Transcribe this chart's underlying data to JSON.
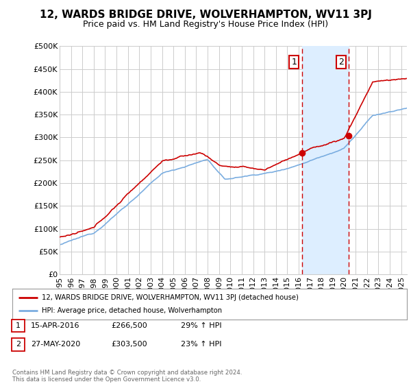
{
  "title": "12, WARDS BRIDGE DRIVE, WOLVERHAMPTON, WV11 3PJ",
  "subtitle": "Price paid vs. HM Land Registry's House Price Index (HPI)",
  "yticks": [
    0,
    50000,
    100000,
    150000,
    200000,
    250000,
    300000,
    350000,
    400000,
    450000,
    500000
  ],
  "ytick_labels": [
    "£0",
    "£50K",
    "£100K",
    "£150K",
    "£200K",
    "£250K",
    "£300K",
    "£350K",
    "£400K",
    "£450K",
    "£500K"
  ],
  "xmin": 1995.0,
  "xmax": 2025.5,
  "ymin": 0,
  "ymax": 500000,
  "red_line_color": "#cc0000",
  "blue_line_color": "#7aade0",
  "shade_color": "#ddeeff",
  "marker1_x": 2016.29,
  "marker1_y": 266500,
  "marker2_x": 2020.41,
  "marker2_y": 303500,
  "vline1_x": 2016.29,
  "vline2_x": 2020.41,
  "legend_label_red": "12, WARDS BRIDGE DRIVE, WOLVERHAMPTON, WV11 3PJ (detached house)",
  "legend_label_blue": "HPI: Average price, detached house, Wolverhampton",
  "note1_date": "15-APR-2016",
  "note1_price": "£266,500",
  "note1_hpi": "29% ↑ HPI",
  "note2_date": "27-MAY-2020",
  "note2_price": "£303,500",
  "note2_hpi": "23% ↑ HPI",
  "footnote": "Contains HM Land Registry data © Crown copyright and database right 2024.\nThis data is licensed under the Open Government Licence v3.0.",
  "background_color": "#ffffff",
  "grid_color": "#cccccc",
  "title_fontsize": 11,
  "subtitle_fontsize": 9,
  "tick_fontsize": 8,
  "xticks": [
    1995,
    1996,
    1997,
    1998,
    1999,
    2000,
    2001,
    2002,
    2003,
    2004,
    2005,
    2006,
    2007,
    2008,
    2009,
    2010,
    2011,
    2012,
    2013,
    2014,
    2015,
    2016,
    2017,
    2018,
    2019,
    2020,
    2021,
    2022,
    2023,
    2024,
    2025
  ]
}
